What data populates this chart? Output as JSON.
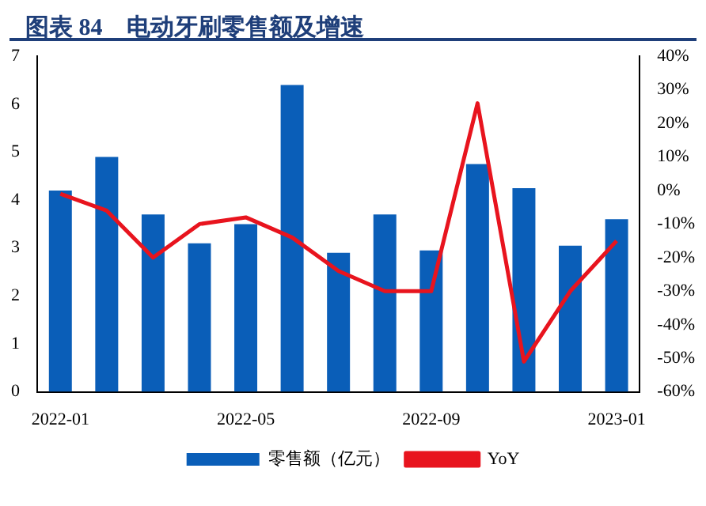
{
  "chart_data": {
    "type": "bar",
    "title": "图表 84　电动牙刷零售额及增速",
    "categories": [
      "2022-01",
      null,
      null,
      null,
      "2022-05",
      null,
      null,
      null,
      "2022-09",
      null,
      null,
      null,
      "2023-01"
    ],
    "series": [
      {
        "name": "零售额（亿元）",
        "color": "#0a5eb8",
        "values": [
          4.2,
          4.9,
          3.7,
          3.1,
          3.5,
          6.4,
          2.9,
          3.7,
          2.95,
          4.75,
          4.25,
          3.05,
          3.6
        ]
      },
      {
        "name": "YoY",
        "type": "line",
        "axis": "y2",
        "color": "#e8141e",
        "values": [
          -1,
          -6,
          -20,
          -10,
          -8,
          -14,
          -24,
          -30,
          -30,
          26,
          -51,
          -30,
          -15
        ]
      }
    ],
    "ylim": [
      0,
      7
    ],
    "yticks": [
      0,
      1,
      2,
      3,
      4,
      5,
      6,
      7
    ],
    "y2lim": [
      -60,
      40
    ],
    "y2ticks": [
      {
        "value": -60,
        "label": "-60%"
      },
      {
        "value": -50,
        "label": "-50%"
      },
      {
        "value": -40,
        "label": "-40%"
      },
      {
        "value": -30,
        "label": "-30%"
      },
      {
        "value": -20,
        "label": "-20%"
      },
      {
        "value": -10,
        "label": "-10%"
      },
      {
        "value": 0,
        "label": "0%"
      },
      {
        "value": 10,
        "label": "10%"
      },
      {
        "value": 20,
        "label": "20%"
      },
      {
        "value": 30,
        "label": "30%"
      },
      {
        "value": 40,
        "label": "40%"
      }
    ],
    "grid": false,
    "legend": "bottom",
    "marker": "none"
  }
}
